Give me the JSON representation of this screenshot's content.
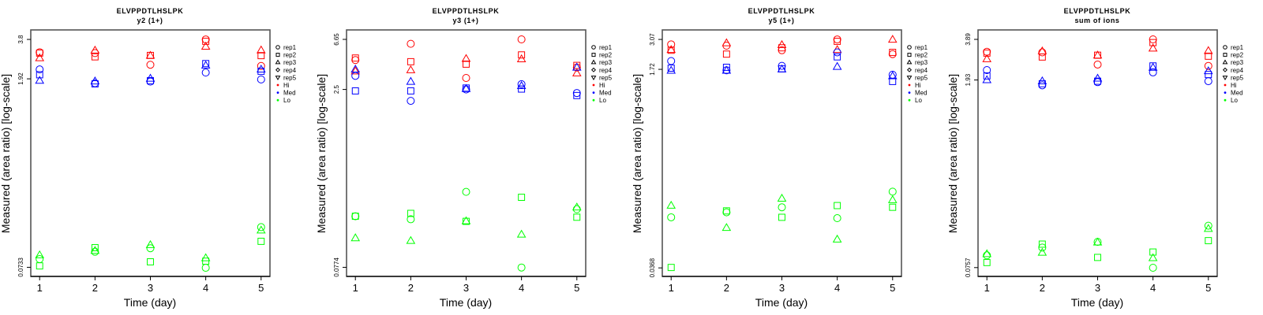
{
  "colors": {
    "Hi": "#ff0000",
    "Med": "#0000ff",
    "Lo": "#00ff00"
  },
  "legend": {
    "reps": [
      {
        "label": "rep1",
        "shape": "circle"
      },
      {
        "label": "rep2",
        "shape": "square"
      },
      {
        "label": "rep3",
        "shape": "triangle-up"
      },
      {
        "label": "rep4",
        "shape": "diamond"
      },
      {
        "label": "rep5",
        "shape": "triangle-down"
      }
    ],
    "groups": [
      {
        "label": "Hi",
        "color": "#ff0000"
      },
      {
        "label": "Med",
        "color": "#0000ff"
      },
      {
        "label": "Lo",
        "color": "#00ff00"
      }
    ]
  },
  "chart_data": [
    {
      "type": "scatter",
      "title": "ELVPPDTLHSLPK",
      "subtitle": "y2 (1+)",
      "xlabel": "Time (day)",
      "ylabel": "Measured (area ratio) [log-scale]",
      "yscale": "log",
      "x": [
        1,
        2,
        3,
        4,
        5
      ],
      "xticks": [
        "1",
        "2",
        "3",
        "4",
        "5"
      ],
      "xlim": [
        0.84,
        5.16
      ],
      "ylim": [
        0.0626,
        4.48
      ],
      "yticks": [
        3.8,
        1.92,
        0.0733
      ],
      "ytick_labels": [
        "3.8",
        "1.92",
        "0.0733"
      ],
      "legend_position": "right",
      "series": [
        {
          "group": "Hi",
          "rep": "rep1",
          "values": [
            3.04,
            3.0,
            2.45,
            3.8,
            2.4
          ]
        },
        {
          "group": "Hi",
          "rep": "rep2",
          "values": [
            3.0,
            2.81,
            2.88,
            3.68,
            2.87
          ]
        },
        {
          "group": "Hi",
          "rep": "rep3",
          "values": [
            2.75,
            3.14,
            2.87,
            3.36,
            3.15
          ]
        },
        {
          "group": "Med",
          "rep": "rep1",
          "values": [
            2.26,
            1.78,
            1.83,
            2.14,
            1.9
          ]
        },
        {
          "group": "Med",
          "rep": "rep2",
          "values": [
            2.06,
            1.76,
            1.86,
            2.5,
            2.19
          ]
        },
        {
          "group": "Med",
          "rep": "rep3",
          "values": [
            1.86,
            1.84,
            1.93,
            2.42,
            2.26
          ]
        },
        {
          "group": "Lo",
          "rep": "rep1",
          "values": [
            0.0845,
            0.096,
            0.102,
            0.0727,
            0.147
          ]
        },
        {
          "group": "Lo",
          "rep": "rep2",
          "values": [
            0.0751,
            0.103,
            0.0806,
            0.0815,
            0.115
          ]
        },
        {
          "group": "Lo",
          "rep": "rep3",
          "values": [
            0.0905,
            0.0977,
            0.108,
            0.086,
            0.139
          ]
        }
      ]
    },
    {
      "type": "scatter",
      "title": "ELVPPDTLHSLPK",
      "subtitle": "y3 (1+)",
      "xlabel": "Time (day)",
      "ylabel": "Measured (area ratio) [log-scale]",
      "yscale": "log",
      "x": [
        1,
        2,
        3,
        4,
        5
      ],
      "xticks": [
        "1",
        "2",
        "3",
        "4",
        "5"
      ],
      "xlim": [
        0.84,
        5.16
      ],
      "ylim": [
        0.0648,
        8.0
      ],
      "yticks": [
        6.65,
        2.5,
        0.0774
      ],
      "ytick_labels": [
        "6.65",
        "2.5",
        "0.0774"
      ],
      "legend_position": "right",
      "series": [
        {
          "group": "Hi",
          "rep": "rep1",
          "values": [
            4.44,
            6.1,
            3.13,
            6.65,
            3.84
          ]
        },
        {
          "group": "Hi",
          "rep": "rep2",
          "values": [
            4.62,
            4.3,
            4.1,
            4.91,
            4.0
          ]
        },
        {
          "group": "Hi",
          "rep": "rep3",
          "values": [
            3.57,
            3.65,
            4.55,
            4.52,
            3.43
          ]
        },
        {
          "group": "Med",
          "rep": "rep1",
          "values": [
            3.26,
            2.0,
            2.5,
            2.77,
            2.33
          ]
        },
        {
          "group": "Med",
          "rep": "rep2",
          "values": [
            2.43,
            2.43,
            2.57,
            2.52,
            2.22
          ]
        },
        {
          "group": "Med",
          "rep": "rep3",
          "values": [
            3.7,
            2.91,
            2.53,
            2.68,
            3.84
          ]
        },
        {
          "group": "Lo",
          "rep": "rep1",
          "values": [
            0.21,
            0.198,
            0.338,
            0.0771,
            0.241
          ]
        },
        {
          "group": "Lo",
          "rep": "rep2",
          "values": [
            0.21,
            0.222,
            0.19,
            0.304,
            0.206
          ]
        },
        {
          "group": "Lo",
          "rep": "rep3",
          "values": [
            0.137,
            0.13,
            0.191,
            0.147,
            0.25
          ]
        }
      ]
    },
    {
      "type": "scatter",
      "title": "ELVPPDTLHSLPK",
      "subtitle": "y5 (1+)",
      "xlabel": "Time (day)",
      "ylabel": "Measured (area ratio) [log-scale]",
      "yscale": "log",
      "x": [
        1,
        2,
        3,
        4,
        5
      ],
      "xticks": [
        "1",
        "2",
        "3",
        "4",
        "5"
      ],
      "xlim": [
        0.84,
        5.16
      ],
      "ylim": [
        0.0312,
        3.69
      ],
      "yticks": [
        3.07,
        1.72,
        0.0368
      ],
      "ytick_labels": [
        "3.07",
        "1.72",
        "0.0368"
      ],
      "legend_position": "right",
      "series": [
        {
          "group": "Hi",
          "rep": "rep1",
          "values": [
            2.79,
            2.72,
            2.49,
            3.07,
            2.31
          ]
        },
        {
          "group": "Hi",
          "rep": "rep2",
          "values": [
            2.49,
            2.31,
            2.61,
            2.96,
            2.39
          ]
        },
        {
          "group": "Hi",
          "rep": "rep3",
          "values": [
            2.51,
            2.86,
            2.76,
            2.51,
            3.06
          ]
        },
        {
          "group": "Med",
          "rep": "rep1",
          "values": [
            2.02,
            1.69,
            1.84,
            2.39,
            1.55
          ]
        },
        {
          "group": "Med",
          "rep": "rep2",
          "values": [
            1.76,
            1.79,
            1.74,
            2.19,
            1.36
          ]
        },
        {
          "group": "Med",
          "rep": "rep3",
          "values": [
            1.68,
            1.68,
            1.72,
            1.81,
            1.51
          ]
        },
        {
          "group": "Lo",
          "rep": "rep1",
          "values": [
            0.098,
            0.108,
            0.119,
            0.0964,
            0.161
          ]
        },
        {
          "group": "Lo",
          "rep": "rep2",
          "values": [
            0.0371,
            0.111,
            0.098,
            0.123,
            0.119
          ]
        },
        {
          "group": "Lo",
          "rep": "rep3",
          "values": [
            0.123,
            0.08,
            0.141,
            0.0639,
            0.137
          ]
        }
      ]
    },
    {
      "type": "scatter",
      "title": "ELVPPDTLHSLPK",
      "subtitle": "sum of ions",
      "xlabel": "Time (day)",
      "ylabel": "Measured (area ratio) [log-scale]",
      "yscale": "log",
      "x": [
        1,
        2,
        3,
        4,
        5
      ],
      "xticks": [
        "1",
        "2",
        "3",
        "4",
        "5"
      ],
      "xlim": [
        0.84,
        5.16
      ],
      "ylim": [
        0.065,
        4.58
      ],
      "yticks": [
        3.89,
        1.93,
        0.0757
      ],
      "ytick_labels": [
        "3.89",
        "1.93",
        "0.0757"
      ],
      "legend_position": "right",
      "series": [
        {
          "group": "Hi",
          "rep": "rep1",
          "values": [
            3.14,
            3.11,
            2.52,
            3.89,
            2.46
          ]
        },
        {
          "group": "Hi",
          "rep": "rep2",
          "values": [
            3.07,
            2.87,
            2.96,
            3.68,
            2.91
          ]
        },
        {
          "group": "Hi",
          "rep": "rep3",
          "values": [
            2.77,
            3.17,
            2.95,
            3.33,
            3.19
          ]
        },
        {
          "group": "Med",
          "rep": "rep1",
          "values": [
            2.29,
            1.76,
            1.86,
            2.2,
            1.89
          ]
        },
        {
          "group": "Med",
          "rep": "rep2",
          "values": [
            2.07,
            1.81,
            1.89,
            2.46,
            2.12
          ]
        },
        {
          "group": "Med",
          "rep": "rep3",
          "values": [
            1.93,
            1.89,
            1.98,
            2.39,
            2.25
          ]
        },
        {
          "group": "Lo",
          "rep": "rep1",
          "values": [
            0.0935,
            0.107,
            0.118,
            0.0755,
            0.156
          ]
        },
        {
          "group": "Lo",
          "rep": "rep2",
          "values": [
            0.0826,
            0.1135,
            0.0902,
            0.099,
            0.1205
          ]
        },
        {
          "group": "Lo",
          "rep": "rep3",
          "values": [
            0.0957,
            0.098,
            0.117,
            0.0893,
            0.148
          ]
        }
      ]
    }
  ]
}
